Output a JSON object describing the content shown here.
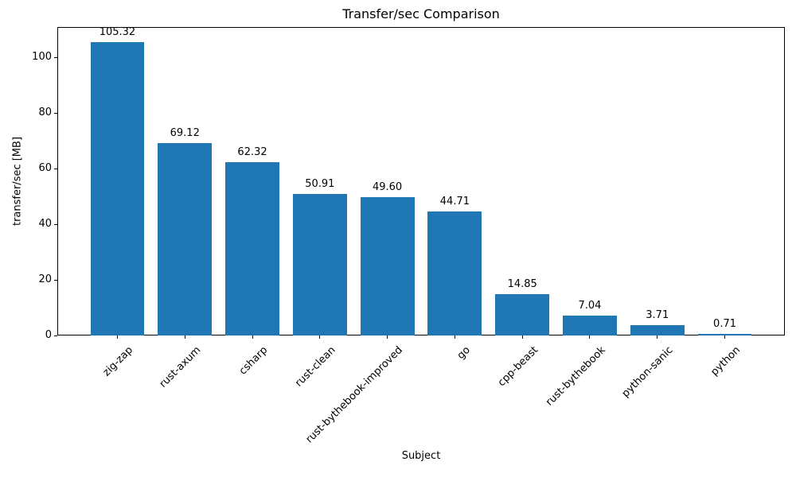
{
  "chart_data": {
    "type": "bar",
    "title": "Transfer/sec Comparison",
    "xlabel": "Subject",
    "ylabel": "transfer/sec [MB]",
    "categories": [
      "zig-zap",
      "rust-axum",
      "csharp",
      "rust-clean",
      "rust-bythebook-improved",
      "go",
      "cpp-beast",
      "rust-bythebook",
      "python-sanic",
      "python"
    ],
    "values": [
      105.32,
      69.12,
      62.32,
      50.91,
      49.6,
      44.71,
      14.85,
      7.04,
      3.71,
      0.71
    ],
    "value_labels": [
      "105.32",
      "69.12",
      "62.32",
      "50.91",
      "49.60",
      "44.71",
      "14.85",
      "7.04",
      "3.71",
      "0.71"
    ],
    "yticks": [
      0,
      20,
      40,
      60,
      80,
      100
    ],
    "ylim": [
      0,
      110.86
    ],
    "xtick_rotation_deg": 45,
    "grid": false,
    "legend_position": "none",
    "bar_color": "#1f77b4",
    "axis_color": "#000000",
    "background_color": "#ffffff"
  }
}
